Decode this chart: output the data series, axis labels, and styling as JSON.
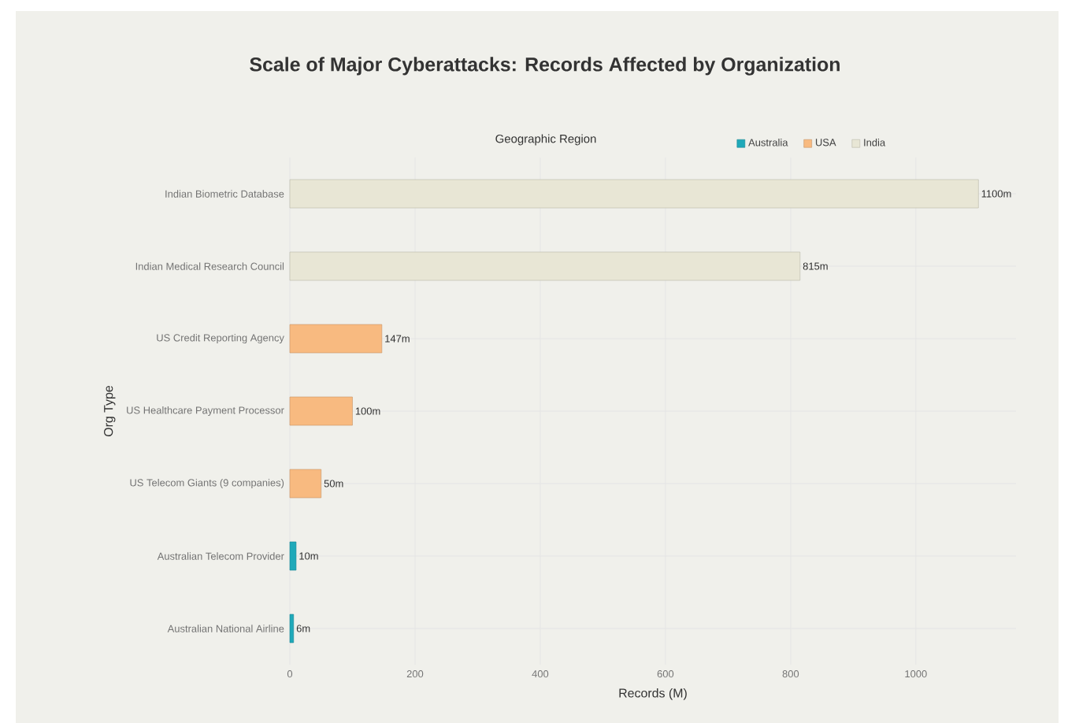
{
  "chart_data": {
    "type": "bar",
    "orientation": "horizontal",
    "title": "Scale of Major Cyberattacks: Records Affected by Organization",
    "xlabel": "Records (M)",
    "ylabel": "Org Type",
    "legend_title": "Geographic Region",
    "legend": "top",
    "categories": [
      "Indian Biometric Database",
      "Indian Medical Research Council",
      "US Credit Reporting Agency",
      "US Healthcare Payment Processor",
      "US Telecom Giants (9 companies)",
      "Australian Telecom Provider",
      "Australian National Airline"
    ],
    "series": [
      {
        "name": "Australia",
        "color": "#1fa9b9",
        "values": [
          null,
          null,
          null,
          null,
          null,
          10,
          6
        ],
        "value_labels": [
          null,
          null,
          null,
          null,
          null,
          "10m",
          "6m"
        ]
      },
      {
        "name": "USA",
        "color": "#f8ba80",
        "values": [
          null,
          null,
          147,
          100,
          50,
          null,
          null
        ],
        "value_labels": [
          null,
          null,
          "147m",
          "100m",
          "50m",
          null,
          null
        ]
      },
      {
        "name": "India",
        "color": "#e8e6d5",
        "values": [
          1100,
          815,
          null,
          null,
          null,
          null,
          null
        ],
        "value_labels": [
          "1100m",
          "815m",
          null,
          null,
          null,
          null,
          null
        ]
      }
    ],
    "xlim": [
      0,
      1160
    ],
    "xticks": [
      0,
      200,
      400,
      600,
      800,
      1000
    ],
    "grid": true
  }
}
